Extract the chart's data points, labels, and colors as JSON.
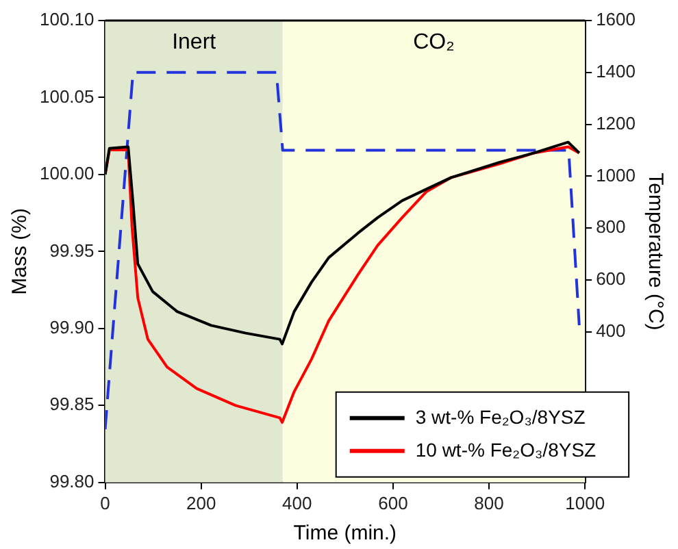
{
  "chart_data": {
    "type": "line",
    "xlabel": "Time (min.)",
    "ylabel": "Mass (%)",
    "y2label": "Temperature (°C)",
    "xlim": [
      0,
      1000
    ],
    "xticks": [
      0,
      200,
      400,
      600,
      800,
      1000
    ],
    "ylim": [
      99.8,
      100.1
    ],
    "yticks": [
      {
        "value": 99.8,
        "label": "99.80"
      },
      {
        "value": 99.85,
        "label": "99.85"
      },
      {
        "value": 99.9,
        "label": "99.90"
      },
      {
        "value": 99.95,
        "label": "99.95"
      },
      {
        "value": 100,
        "label": "100.00"
      },
      {
        "value": 100.05,
        "label": "100.05"
      },
      {
        "value": 100.1,
        "label": "100.10"
      }
    ],
    "y2lim": [
      -180,
      1600
    ],
    "y2ticks": [
      400,
      600,
      800,
      1000,
      1200,
      1400,
      1600
    ],
    "grid": false,
    "legend": "bottom right",
    "marker": "none",
    "bands": [
      {
        "axis": "x",
        "from": 0,
        "to": 370,
        "label": "Inert",
        "color": "#e0e8d0"
      },
      {
        "axis": "x",
        "from": 370,
        "to": 1000,
        "label": "CO₂",
        "color": "#fdfde0"
      }
    ],
    "series": [
      {
        "name": "3 wt-% Fe₂O₃/8YSZ",
        "color": "#000000",
        "x": [
          0,
          9,
          48,
          58,
          68,
          99,
          150,
          221,
          293,
          364,
          369,
          394,
          430,
          466,
          527,
          568,
          619,
          680,
          721,
          823,
          894,
          965,
          988
        ],
        "values": [
          100.0,
          100.017,
          100.018,
          99.982,
          99.942,
          99.924,
          99.911,
          99.902,
          99.897,
          99.893,
          99.89,
          99.911,
          99.93,
          99.946,
          99.962,
          99.972,
          99.983,
          99.992,
          99.998,
          100.008,
          100.014,
          100.021,
          100.014
        ]
      },
      {
        "name": "10 wt-% Fe₂O₃/8YSZ",
        "color": "#ff0000",
        "x": [
          0,
          9,
          48,
          56,
          68,
          89,
          129,
          191,
          272,
          364,
          369,
          394,
          430,
          466,
          527,
          568,
          619,
          670,
          721,
          823,
          894,
          965,
          988
        ],
        "values": [
          100.0,
          100.016,
          100.016,
          99.966,
          99.92,
          99.893,
          99.875,
          99.861,
          99.85,
          99.842,
          99.839,
          99.859,
          99.88,
          99.905,
          99.935,
          99.954,
          99.972,
          99.989,
          99.998,
          100.007,
          100.014,
          100.018,
          100.014
        ]
      },
      {
        "axis": "y2",
        "color": "#2233dd",
        "line_style": "dashed",
        "x": [
          0,
          58,
          357,
          370,
          966,
          988
        ],
        "values": [
          25,
          1400,
          1400,
          1100,
          1100,
          426
        ]
      }
    ]
  }
}
